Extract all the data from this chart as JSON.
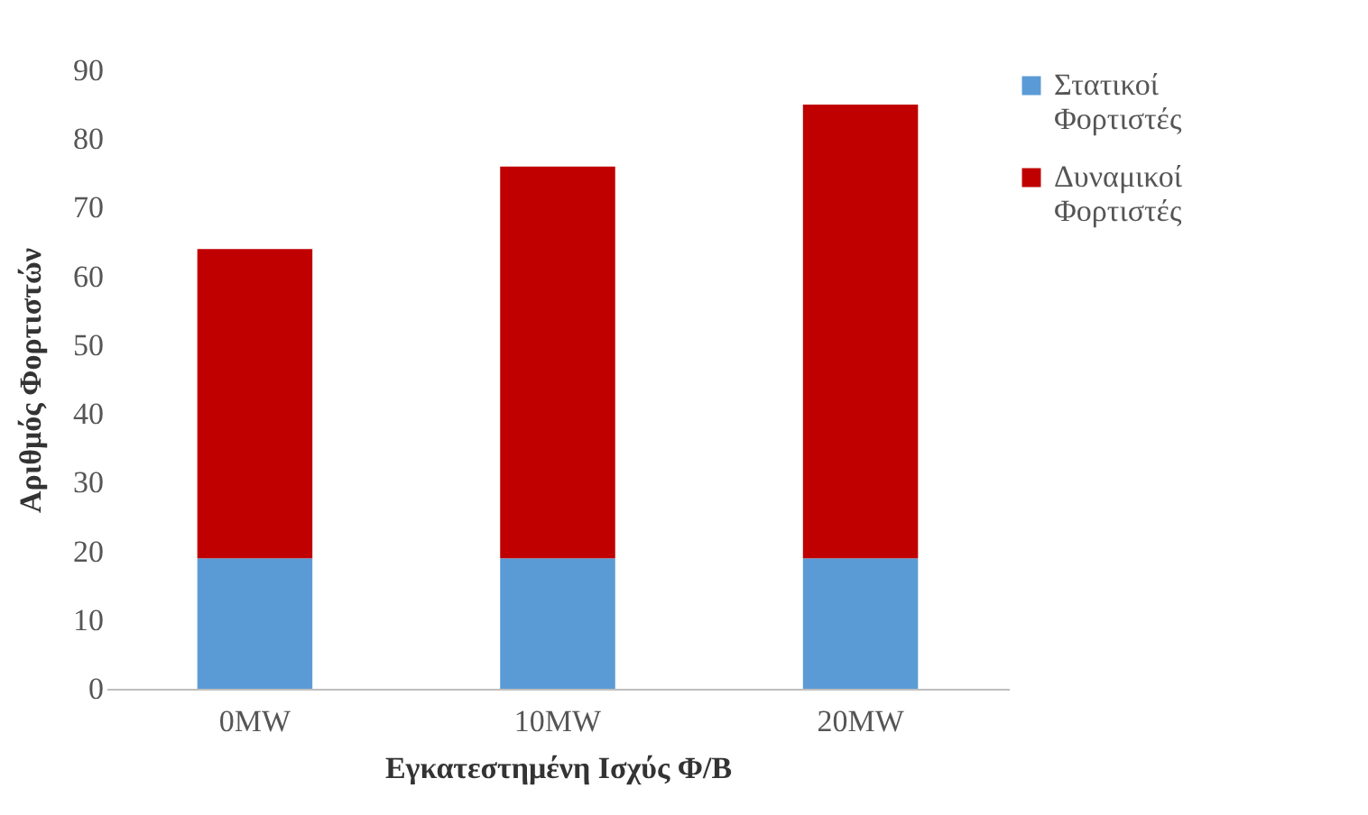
{
  "chart_data": {
    "type": "bar",
    "stacked": true,
    "xlabel": "Εγκατεστημένη Ισχύς Φ/Β",
    "ylabel": "Αριθμός Φορτιστών",
    "categories": [
      "0MW",
      "10MW",
      "20MW"
    ],
    "series": [
      {
        "name": "Στατικοί Φορτιστές",
        "color": "#5b9bd5",
        "values": [
          19,
          19,
          19
        ]
      },
      {
        "name": "Δυναμικοί Φορτιστές",
        "color": "#c00000",
        "values": [
          45,
          57,
          66
        ]
      }
    ],
    "ylim": [
      0,
      90
    ],
    "yticks": [
      0,
      10,
      20,
      30,
      40,
      50,
      60,
      70,
      80,
      90
    ],
    "grid": false,
    "legend": "top right"
  }
}
